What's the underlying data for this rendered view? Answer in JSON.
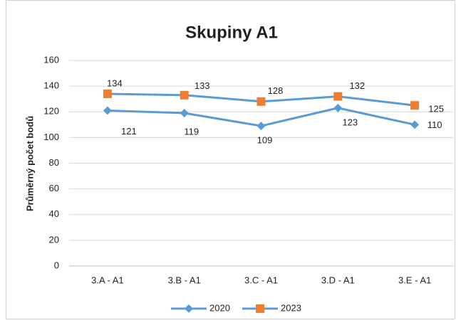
{
  "chart_data": {
    "type": "line",
    "title": "Skupiny A1",
    "y_label": "Průměrný počet bodů",
    "categories": [
      "3.A - A1",
      "3.B - A1",
      "3.C - A1",
      "3.D - A1",
      "3.E - A1"
    ],
    "series": [
      {
        "name": "2020",
        "color": "#5b9bd5",
        "marker": "diamond",
        "marker_color": "#5b9bd5",
        "values": [
          121,
          119,
          109,
          123,
          110
        ]
      },
      {
        "name": "2023",
        "color": "#5b9bd5",
        "marker": "square",
        "marker_color": "#ed7d31",
        "values": [
          134,
          133,
          128,
          132,
          125
        ]
      }
    ],
    "ylim": [
      0,
      160
    ],
    "yticks": [
      0,
      20,
      40,
      60,
      80,
      100,
      120,
      140,
      160
    ],
    "grid": true,
    "legend": "bottom"
  }
}
